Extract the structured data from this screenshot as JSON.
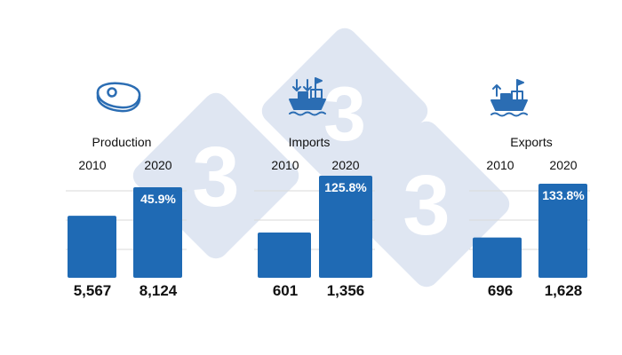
{
  "colors": {
    "bar": "#1f6ab4",
    "icon": "#2b6db3",
    "watermark": "#dfe6f2",
    "grid": "#d9d9d9"
  },
  "watermark_text": "3",
  "chart_data": [
    {
      "type": "bar",
      "title": "Production",
      "icon": "meat-steak-icon",
      "categories": [
        "2010",
        "2020"
      ],
      "values": [
        5567,
        8124
      ],
      "value_labels": [
        "5,567",
        "8,124"
      ],
      "change_label": "45.9%"
    },
    {
      "type": "bar",
      "title": "Imports",
      "icon": "cargo-ship-import-icon",
      "categories": [
        "2010",
        "2020"
      ],
      "values": [
        601,
        1356
      ],
      "value_labels": [
        "601",
        "1,356"
      ],
      "change_label": "125.8%"
    },
    {
      "type": "bar",
      "title": "Exports",
      "icon": "cargo-ship-export-icon",
      "categories": [
        "2010",
        "2020"
      ],
      "values": [
        696,
        1628
      ],
      "value_labels": [
        "696",
        "1,628"
      ],
      "change_label": "133.8%"
    }
  ]
}
